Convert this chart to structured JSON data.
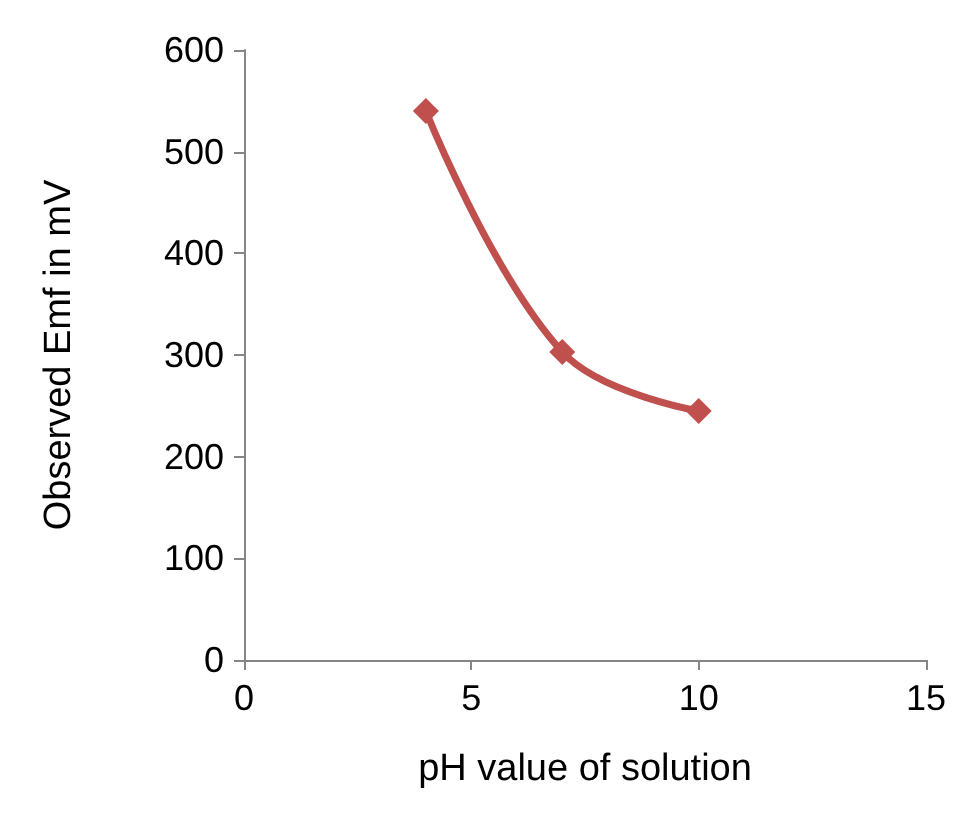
{
  "chart_data": {
    "type": "line",
    "xlabel": "pH value of solution",
    "ylabel": "Observed Emf in mV",
    "x": [
      4,
      7,
      10
    ],
    "series": [
      {
        "color": "#c0504d",
        "values": [
          540,
          303,
          245
        ]
      }
    ],
    "xlim": [
      0,
      15
    ],
    "xticks": [
      0,
      5,
      10,
      15
    ],
    "ylim": [
      0,
      600
    ],
    "yticks": [
      0,
      100,
      200,
      300,
      400,
      500,
      600
    ],
    "marker": "diamond",
    "line_style": "solid"
  }
}
